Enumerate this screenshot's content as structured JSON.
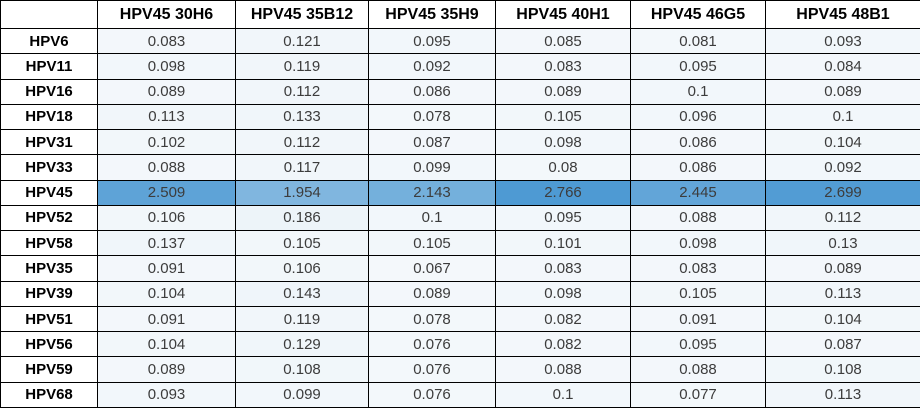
{
  "chart_data": {
    "type": "heatmap",
    "title": "",
    "corner": "",
    "columns": [
      "HPV45 30H6",
      "HPV45 35B12",
      "HPV45 35H9",
      "HPV45 40H1",
      "HPV45 46G5",
      "HPV45 48B1"
    ],
    "rows": [
      "HPV6",
      "HPV11",
      "HPV16",
      "HPV18",
      "HPV31",
      "HPV33",
      "HPV45",
      "HPV52",
      "HPV58",
      "HPV35",
      "HPV39",
      "HPV51",
      "HPV56",
      "HPV59",
      "HPV68"
    ],
    "values": [
      [
        0.083,
        0.121,
        0.095,
        0.085,
        0.081,
        0.093
      ],
      [
        0.098,
        0.119,
        0.092,
        0.083,
        0.095,
        0.084
      ],
      [
        0.089,
        0.112,
        0.086,
        0.089,
        0.1,
        0.089
      ],
      [
        0.113,
        0.133,
        0.078,
        0.105,
        0.096,
        0.1
      ],
      [
        0.102,
        0.112,
        0.087,
        0.098,
        0.086,
        0.104
      ],
      [
        0.088,
        0.117,
        0.099,
        0.08,
        0.086,
        0.092
      ],
      [
        2.509,
        1.954,
        2.143,
        2.766,
        2.445,
        2.699
      ],
      [
        0.106,
        0.186,
        0.1,
        0.095,
        0.088,
        0.112
      ],
      [
        0.137,
        0.105,
        0.105,
        0.101,
        0.098,
        0.13
      ],
      [
        0.091,
        0.106,
        0.067,
        0.083,
        0.083,
        0.089
      ],
      [
        0.104,
        0.143,
        0.089,
        0.098,
        0.105,
        0.113
      ],
      [
        0.091,
        0.119,
        0.078,
        0.082,
        0.091,
        0.104
      ],
      [
        0.104,
        0.129,
        0.076,
        0.082,
        0.095,
        0.087
      ],
      [
        0.089,
        0.108,
        0.076,
        0.088,
        0.088,
        0.108
      ],
      [
        0.093,
        0.099,
        0.076,
        0.1,
        0.077,
        0.113
      ]
    ],
    "highlighted_row": "HPV45",
    "color_scale": {
      "min_color": "#F4F8FB",
      "max_color": "#4E9AD3",
      "min_value": 0.067,
      "max_value": 2.766
    },
    "grid": true,
    "legend_position": "none",
    "styles": {
      "border_color": "#000000",
      "header_text_color": "#000000",
      "value_text_color": "#3C3C3C",
      "background_color": "#FFFFFF"
    }
  }
}
